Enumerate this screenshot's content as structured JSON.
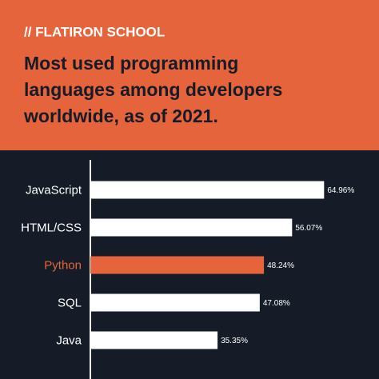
{
  "header": {
    "brand": "// FLATIRON SCHOOL"
  },
  "chart_data": {
    "type": "bar",
    "orientation": "horizontal",
    "title": [
      "Most used programming",
      "languages among developers",
      "worldwide, as of 2021."
    ],
    "categories": [
      "JavaScript",
      "HTML/CSS",
      "Python",
      "SQL",
      "Java"
    ],
    "values": [
      64.96,
      56.07,
      48.24,
      47.08,
      35.35
    ],
    "value_labels": [
      "64.96%",
      "56.07%",
      "48.24%",
      "47.08%",
      "35.35%"
    ],
    "colors": [
      "#ffffff",
      "#ffffff",
      "#e5643b",
      "#ffffff",
      "#ffffff"
    ],
    "xlim": [
      0,
      80
    ]
  }
}
